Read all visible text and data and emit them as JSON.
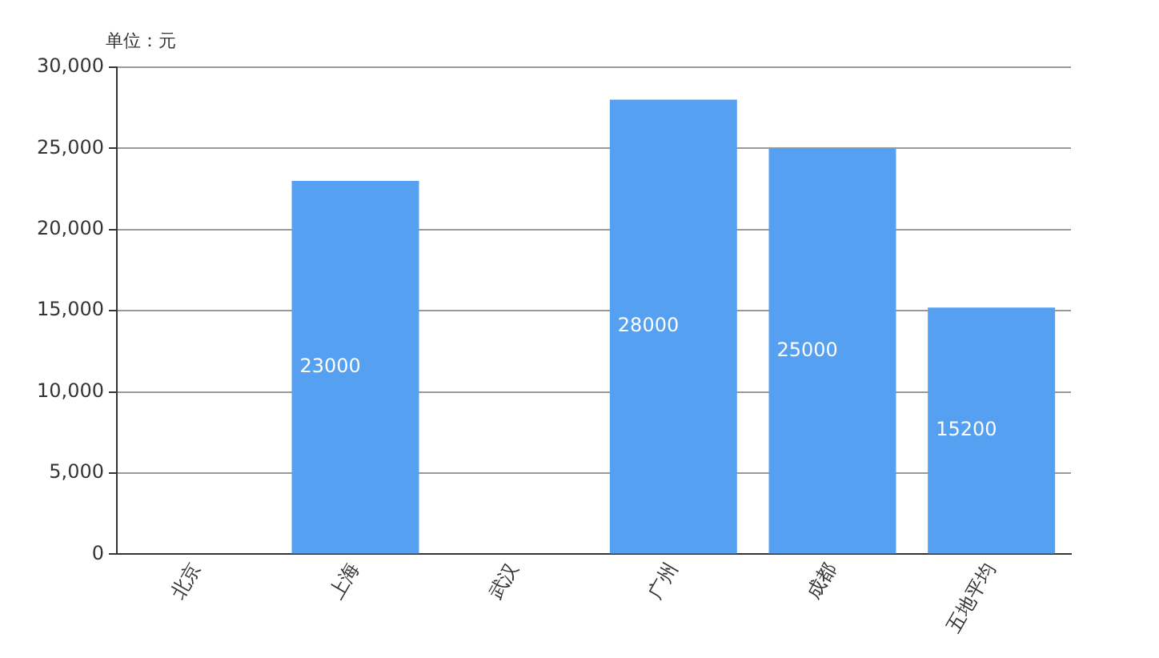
{
  "chart_data": {
    "type": "bar",
    "ylabel": "单位：元",
    "categories": [
      "北京",
      "上海",
      "武汉",
      "广州",
      "成都",
      "五地平均"
    ],
    "values": [
      0,
      23000,
      0,
      28000,
      25000,
      15200
    ],
    "value_labels": [
      null,
      "23000",
      null,
      "28000",
      "25000",
      "15200"
    ],
    "color": "#55a0f0",
    "ylim": [
      0,
      30000
    ],
    "yticks": [
      {
        "value": 0,
        "label": "0"
      },
      {
        "value": 5000,
        "label": "5,000"
      },
      {
        "value": 10000,
        "label": "10,000"
      },
      {
        "value": 15000,
        "label": "15,000"
      },
      {
        "value": 20000,
        "label": "20,000"
      },
      {
        "value": 25000,
        "label": "25,000"
      },
      {
        "value": 30000,
        "label": "30,000"
      }
    ],
    "grid": "y",
    "legend": false
  }
}
